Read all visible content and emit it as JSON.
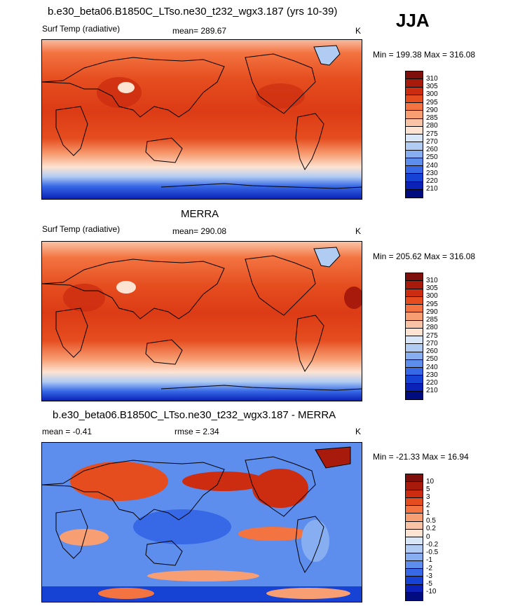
{
  "season": "JJA",
  "panels": [
    {
      "title": "b.e30_beta06.B1850C_LTso.ne30_t232_wgx3.187 (yrs 10-39)",
      "left_label": "Surf Temp (radiative)",
      "mean_text": "mean= 289.67",
      "units": "K",
      "minmax": "Min = 199.38 Max = 316.08",
      "colorbar_labels": [
        "310",
        "305",
        "300",
        "295",
        "290",
        "285",
        "280",
        "275",
        "270",
        "260",
        "250",
        "240",
        "230",
        "220",
        "210"
      ],
      "colorbar_colors": [
        "#7e0f0a",
        "#a81a0c",
        "#cc2d10",
        "#e54d1f",
        "#f37441",
        "#f79e73",
        "#fac3a5",
        "#fde3d2",
        "#d8e6f8",
        "#b0ccf3",
        "#86aef0",
        "#5d8ded",
        "#3769e6",
        "#1743d4",
        "#0a22b8",
        "#000c80"
      ]
    },
    {
      "title": "MERRA",
      "left_label": "Surf Temp (radiative)",
      "mean_text": "mean= 290.08",
      "units": "K",
      "minmax": "Min = 205.62 Max = 316.08",
      "colorbar_labels": [
        "310",
        "305",
        "300",
        "295",
        "290",
        "285",
        "280",
        "275",
        "270",
        "260",
        "250",
        "240",
        "230",
        "220",
        "210"
      ],
      "colorbar_colors": [
        "#7e0f0a",
        "#a81a0c",
        "#cc2d10",
        "#e54d1f",
        "#f37441",
        "#f79e73",
        "#fac3a5",
        "#fde3d2",
        "#d8e6f8",
        "#b0ccf3",
        "#86aef0",
        "#5d8ded",
        "#3769e6",
        "#1743d4",
        "#0a22b8",
        "#000c80"
      ]
    },
    {
      "title": "b.e30_beta06.B1850C_LTso.ne30_t232_wgx3.187 - MERRA",
      "left_label": "mean =  -0.41",
      "mean_text": "rmse =   2.34",
      "units": "K",
      "minmax": "Min = -21.33 Max =  16.94",
      "colorbar_labels": [
        "10",
        "5",
        "3",
        "2",
        "1",
        "0.5",
        "0.2",
        "0",
        "-0.2",
        "-0.5",
        "-1",
        "-2",
        "-3",
        "-5",
        "-10"
      ],
      "colorbar_colors": [
        "#7e0f0a",
        "#a81a0c",
        "#cc2d10",
        "#e54d1f",
        "#f37441",
        "#f79e73",
        "#fac3a5",
        "#fde3d2",
        "#d8e6f8",
        "#b0ccf3",
        "#86aef0",
        "#5d8ded",
        "#3769e6",
        "#1743d4",
        "#0a22b8",
        "#000c80"
      ]
    }
  ]
}
